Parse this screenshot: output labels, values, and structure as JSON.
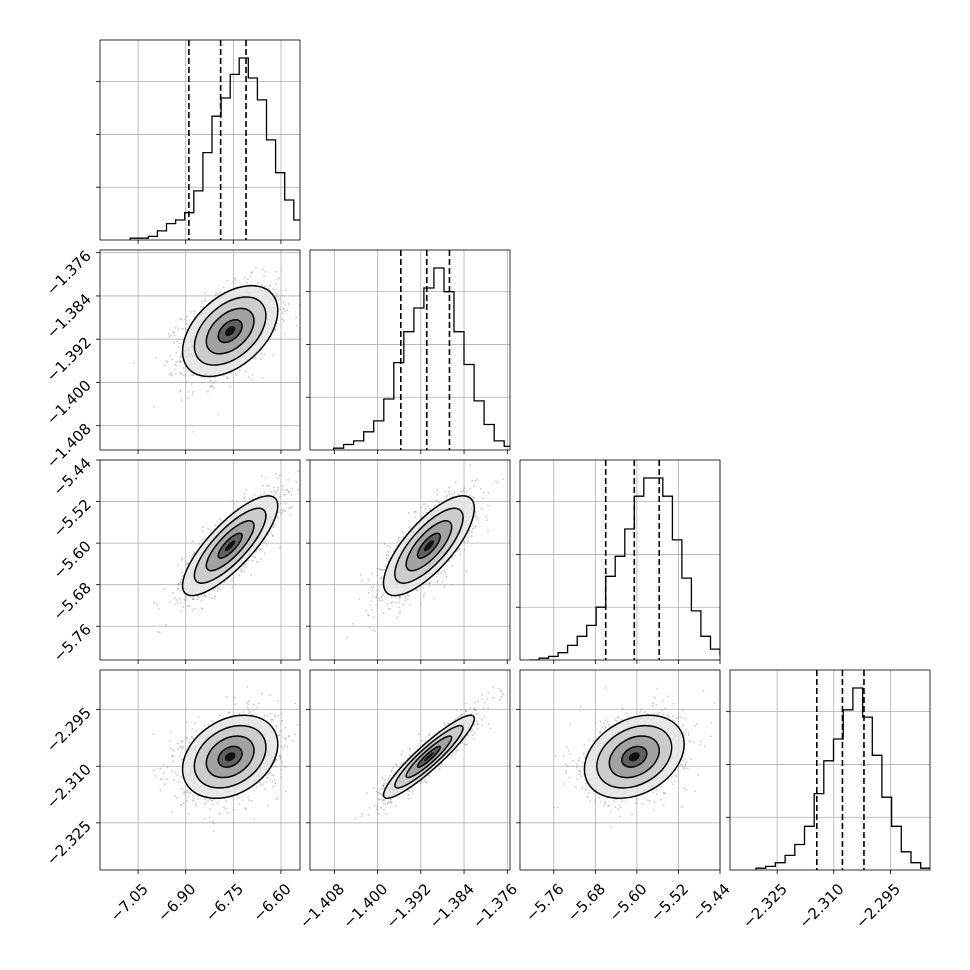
{
  "chart_data": {
    "type": "corner",
    "grid": true,
    "parameters": [
      {
        "range": [
          -7.17,
          -6.54
        ],
        "ticks": [
          -7.05,
          -6.9,
          -6.75,
          -6.6
        ],
        "tick_labels": [
          "−7.05",
          "−6.90",
          "−6.75",
          "−6.60"
        ],
        "mean": -6.76,
        "std": 0.075,
        "quantiles": [
          -6.89,
          -6.79,
          -6.71
        ],
        "hist_counts": [
          1,
          1,
          2,
          5,
          9,
          11,
          15,
          27,
          48,
          68,
          78,
          91,
          100,
          89,
          77,
          55,
          37,
          22,
          11,
          5,
          3,
          1
        ]
      },
      {
        "range": [
          -1.4125,
          -1.3755
        ],
        "ticks": [
          -1.408,
          -1.4,
          -1.392,
          -1.384,
          -1.376
        ],
        "tick_labels": [
          "−1.408",
          "−1.400",
          "−1.392",
          "−1.384",
          "−1.376"
        ],
        "mean": -1.3905,
        "std": 0.0042,
        "quantiles": [
          -1.3957,
          -1.3909,
          -1.3867
        ],
        "hist_counts": [
          1,
          3,
          5,
          10,
          16,
          28,
          48,
          65,
          78,
          89,
          100,
          87,
          65,
          47,
          27,
          14,
          5,
          2,
          1
        ]
      },
      {
        "range": [
          -5.825,
          -5.44
        ],
        "ticks": [
          -5.76,
          -5.68,
          -5.6,
          -5.52,
          -5.44
        ],
        "tick_labels": [
          "−5.76",
          "−5.68",
          "−5.60",
          "−5.52",
          "−5.44"
        ],
        "mean": -5.605,
        "std": 0.048,
        "quantiles": [
          -5.66,
          -5.605,
          -5.557
        ],
        "hist_counts": [
          0,
          1,
          2,
          4,
          8,
          13,
          19,
          29,
          46,
          57,
          72,
          90,
          100,
          100,
          90,
          66,
          45,
          27,
          13,
          6,
          3,
          1
        ]
      },
      {
        "range": [
          -2.3375,
          -2.2845
        ],
        "ticks": [
          -2.325,
          -2.31,
          -2.295
        ],
        "tick_labels": [
          "−2.325",
          "−2.310",
          "−2.295"
        ],
        "mean": -2.3075,
        "std": 0.0055,
        "quantiles": [
          -2.3145,
          -2.3077,
          -2.302
        ],
        "hist_counts": [
          1,
          2,
          4,
          8,
          14,
          24,
          42,
          60,
          72,
          88,
          100,
          84,
          63,
          40,
          24,
          10,
          4,
          1
        ]
      }
    ],
    "correlations": {
      "1-0": 0.45,
      "2-0": 0.8,
      "2-1": 0.75,
      "3-0": 0.3,
      "3-1": 0.92,
      "3-2": 0.3
    },
    "contour_levels_sigma": [
      0.5,
      1.0,
      1.5,
      2.0
    ],
    "colors": {
      "scatter": "#888888",
      "ink": "#000000",
      "grid": "#b0b0b0"
    }
  }
}
